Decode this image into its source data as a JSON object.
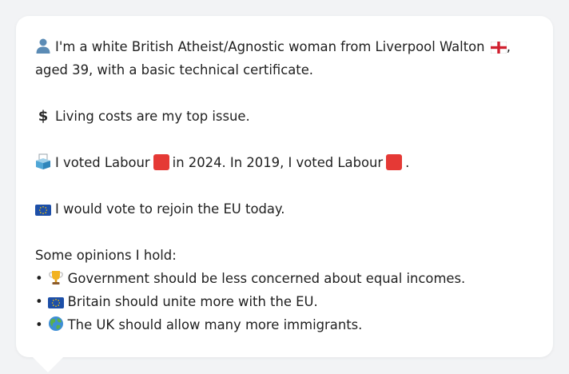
{
  "profile": {
    "line1": "I'm a white British Atheist/Agnostic woman from Liverpool Walton",
    "line1_end": ",",
    "line2": "aged 39, with a basic technical certificate."
  },
  "issue": {
    "text": "Living costs are my top issue."
  },
  "vote": {
    "part1": "I voted Labour",
    "part2": "in 2024. In 2019, I voted Labour",
    "part3": ".",
    "party_color": "#e53935"
  },
  "eu": {
    "text": "I would vote to rejoin the EU today."
  },
  "opinions": {
    "heading": "Some opinions I hold:",
    "bullet": "•",
    "items": [
      {
        "icon": "trophy-icon",
        "text": "Government should be less concerned about equal incomes."
      },
      {
        "icon": "eu-flag-icon",
        "text": "Britain should unite more with the EU."
      },
      {
        "icon": "globe-icon",
        "text": "The UK should allow many more immigrants."
      }
    ]
  }
}
